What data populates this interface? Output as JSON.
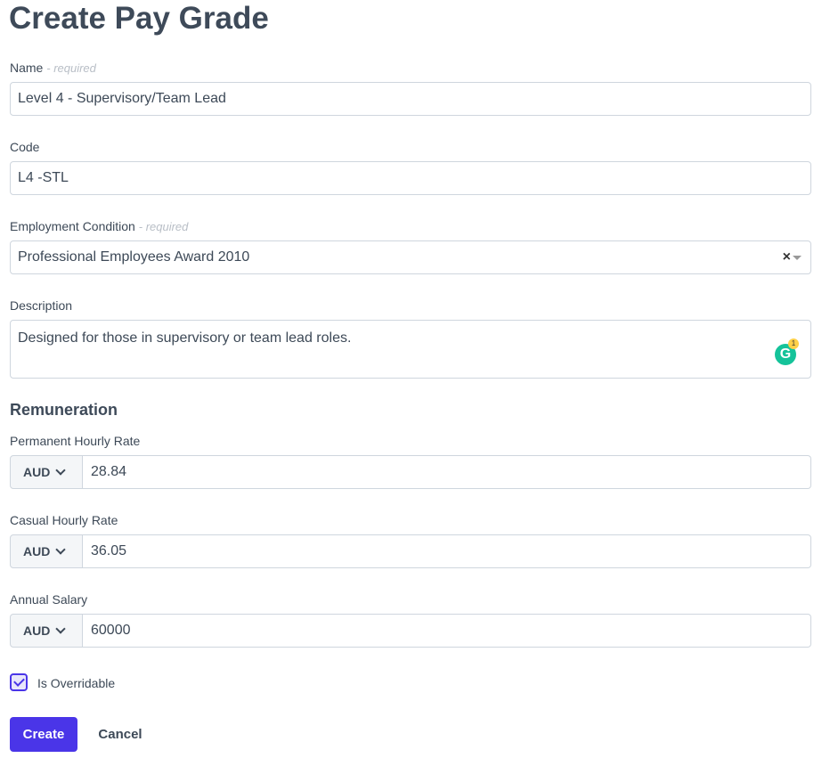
{
  "title": "Create Pay Grade",
  "required_hint": "- required",
  "name": {
    "label": "Name",
    "value": "Level 4 - Supervisory/Team Lead"
  },
  "code": {
    "label": "Code",
    "value": "L4 -STL"
  },
  "employment_condition": {
    "label": "Employment Condition",
    "value": "Professional Employees Award 2010",
    "clear": "×"
  },
  "description": {
    "label": "Description",
    "value": "Designed for those in supervisory or team lead roles.",
    "grammarly_letter": "G",
    "grammarly_count": "1"
  },
  "remuneration": {
    "heading": "Remuneration",
    "permanent": {
      "label": "Permanent Hourly Rate",
      "currency": "AUD",
      "value": "28.84"
    },
    "casual": {
      "label": "Casual Hourly Rate",
      "currency": "AUD",
      "value": "36.05"
    },
    "annual": {
      "label": "Annual Salary",
      "currency": "AUD",
      "value": "60000"
    }
  },
  "overridable": {
    "label": "Is Overridable",
    "checked": true
  },
  "buttons": {
    "create": "Create",
    "cancel": "Cancel"
  },
  "colors": {
    "accent": "#4a35e8",
    "text": "#3e4a59"
  }
}
